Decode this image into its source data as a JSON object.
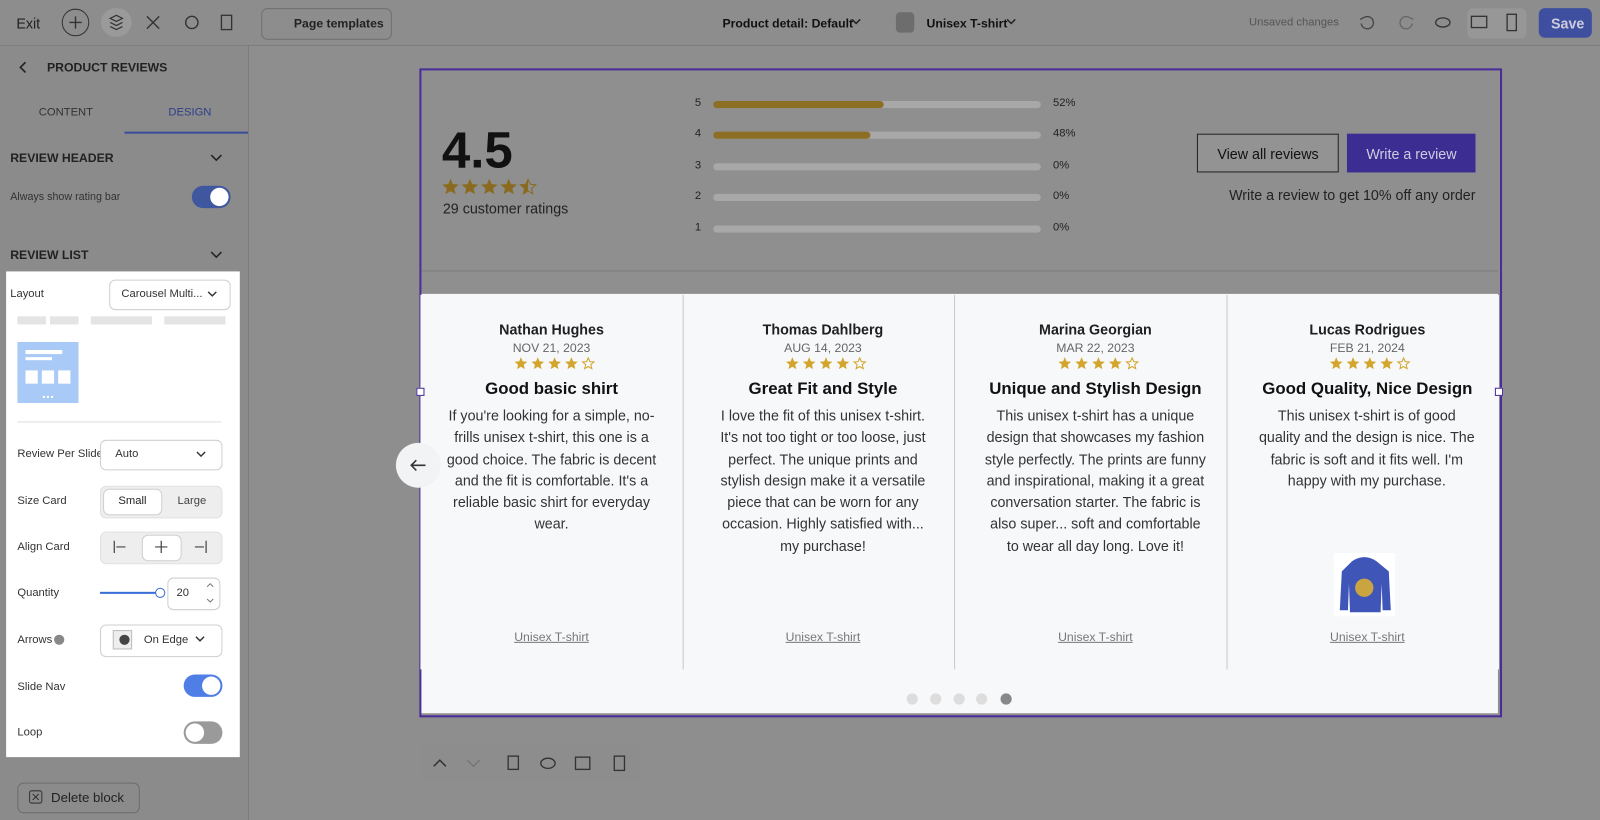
{
  "topbar": {
    "exit": "Exit",
    "page_templates": "Page templates",
    "page_selector": "Product detail: Default",
    "product_selector": "Unisex T-shirt",
    "status": "Unsaved changes",
    "save": "Save"
  },
  "sidebar": {
    "title": "PRODUCT REVIEWS",
    "tabs": [
      "CONTENT",
      "DESIGN"
    ],
    "review_header": {
      "title": "REVIEW HEADER",
      "always_show_rating_bar": "Always show rating bar"
    },
    "review_list": {
      "title": "REVIEW LIST",
      "layout_label": "Layout",
      "layout_value": "Carousel Multi...",
      "review_per_slide_label": "Review Per Slide",
      "review_per_slide_value": "Auto",
      "size_card_label": "Size Card",
      "size_card_options": [
        "Small",
        "Large"
      ],
      "align_card_label": "Align Card",
      "quantity_label": "Quantity",
      "quantity_value": 20,
      "arrows_label": "Arrows",
      "arrows_value": "On Edge",
      "slide_nav_label": "Slide Nav",
      "loop_label": "Loop"
    },
    "delete_block": "Delete block"
  },
  "reviews_widget": {
    "average": 4.5,
    "ratings_count_text": "29 customer ratings",
    "rating_distribution": {
      "stars": [
        5,
        4,
        3,
        2,
        1
      ],
      "values": [
        52,
        48,
        0,
        0,
        0
      ],
      "value_labels": [
        "52%",
        "48%",
        "0%",
        "0%",
        "0%"
      ],
      "xlim": [
        0,
        100
      ]
    },
    "view_all": "View all reviews",
    "write_review": "Write a review",
    "promo": "Write a review to get 10% off any order",
    "reviews": [
      {
        "author": "Nathan Hughes",
        "date": "NOV 21, 2023",
        "title": "Good basic shirt",
        "body": "If you're looking for a simple, no-frills unisex t-shirt, this one is a good choice. The fabric is decent and the fit is comfortable. It's a reliable basic shirt for everyday wear.",
        "product": "Unisex T-shirt"
      },
      {
        "author": "Thomas Dahlberg",
        "date": "AUG 14, 2023",
        "title": "Great Fit and Style",
        "body": "I love the fit of this unisex t-shirt. It's not too tight or too loose, just perfect. The unique prints and stylish design make it a versatile piece that can be worn for any occasion. Highly satisfied with... my purchase!",
        "product": "Unisex T-shirt"
      },
      {
        "author": "Marina Georgian",
        "date": "MAR 22, 2023",
        "title": "Unique and Stylish Design",
        "body": "This unisex t-shirt has a unique design that showcases my fashion style perfectly. The prints are funny and inspirational, making it a great conversation starter. The fabric is also super... soft and comfortable to wear all day long. Love it!",
        "product": "Unisex T-shirt"
      },
      {
        "author": "Lucas Rodrigues",
        "date": "FEB 21, 2024",
        "title": "Good Quality, Nice Design",
        "body": "This unisex t-shirt is of good quality and the design is nice. The fabric is soft and it fits well. I'm happy with my purchase.",
        "product": "Unisex T-shirt"
      }
    ]
  }
}
